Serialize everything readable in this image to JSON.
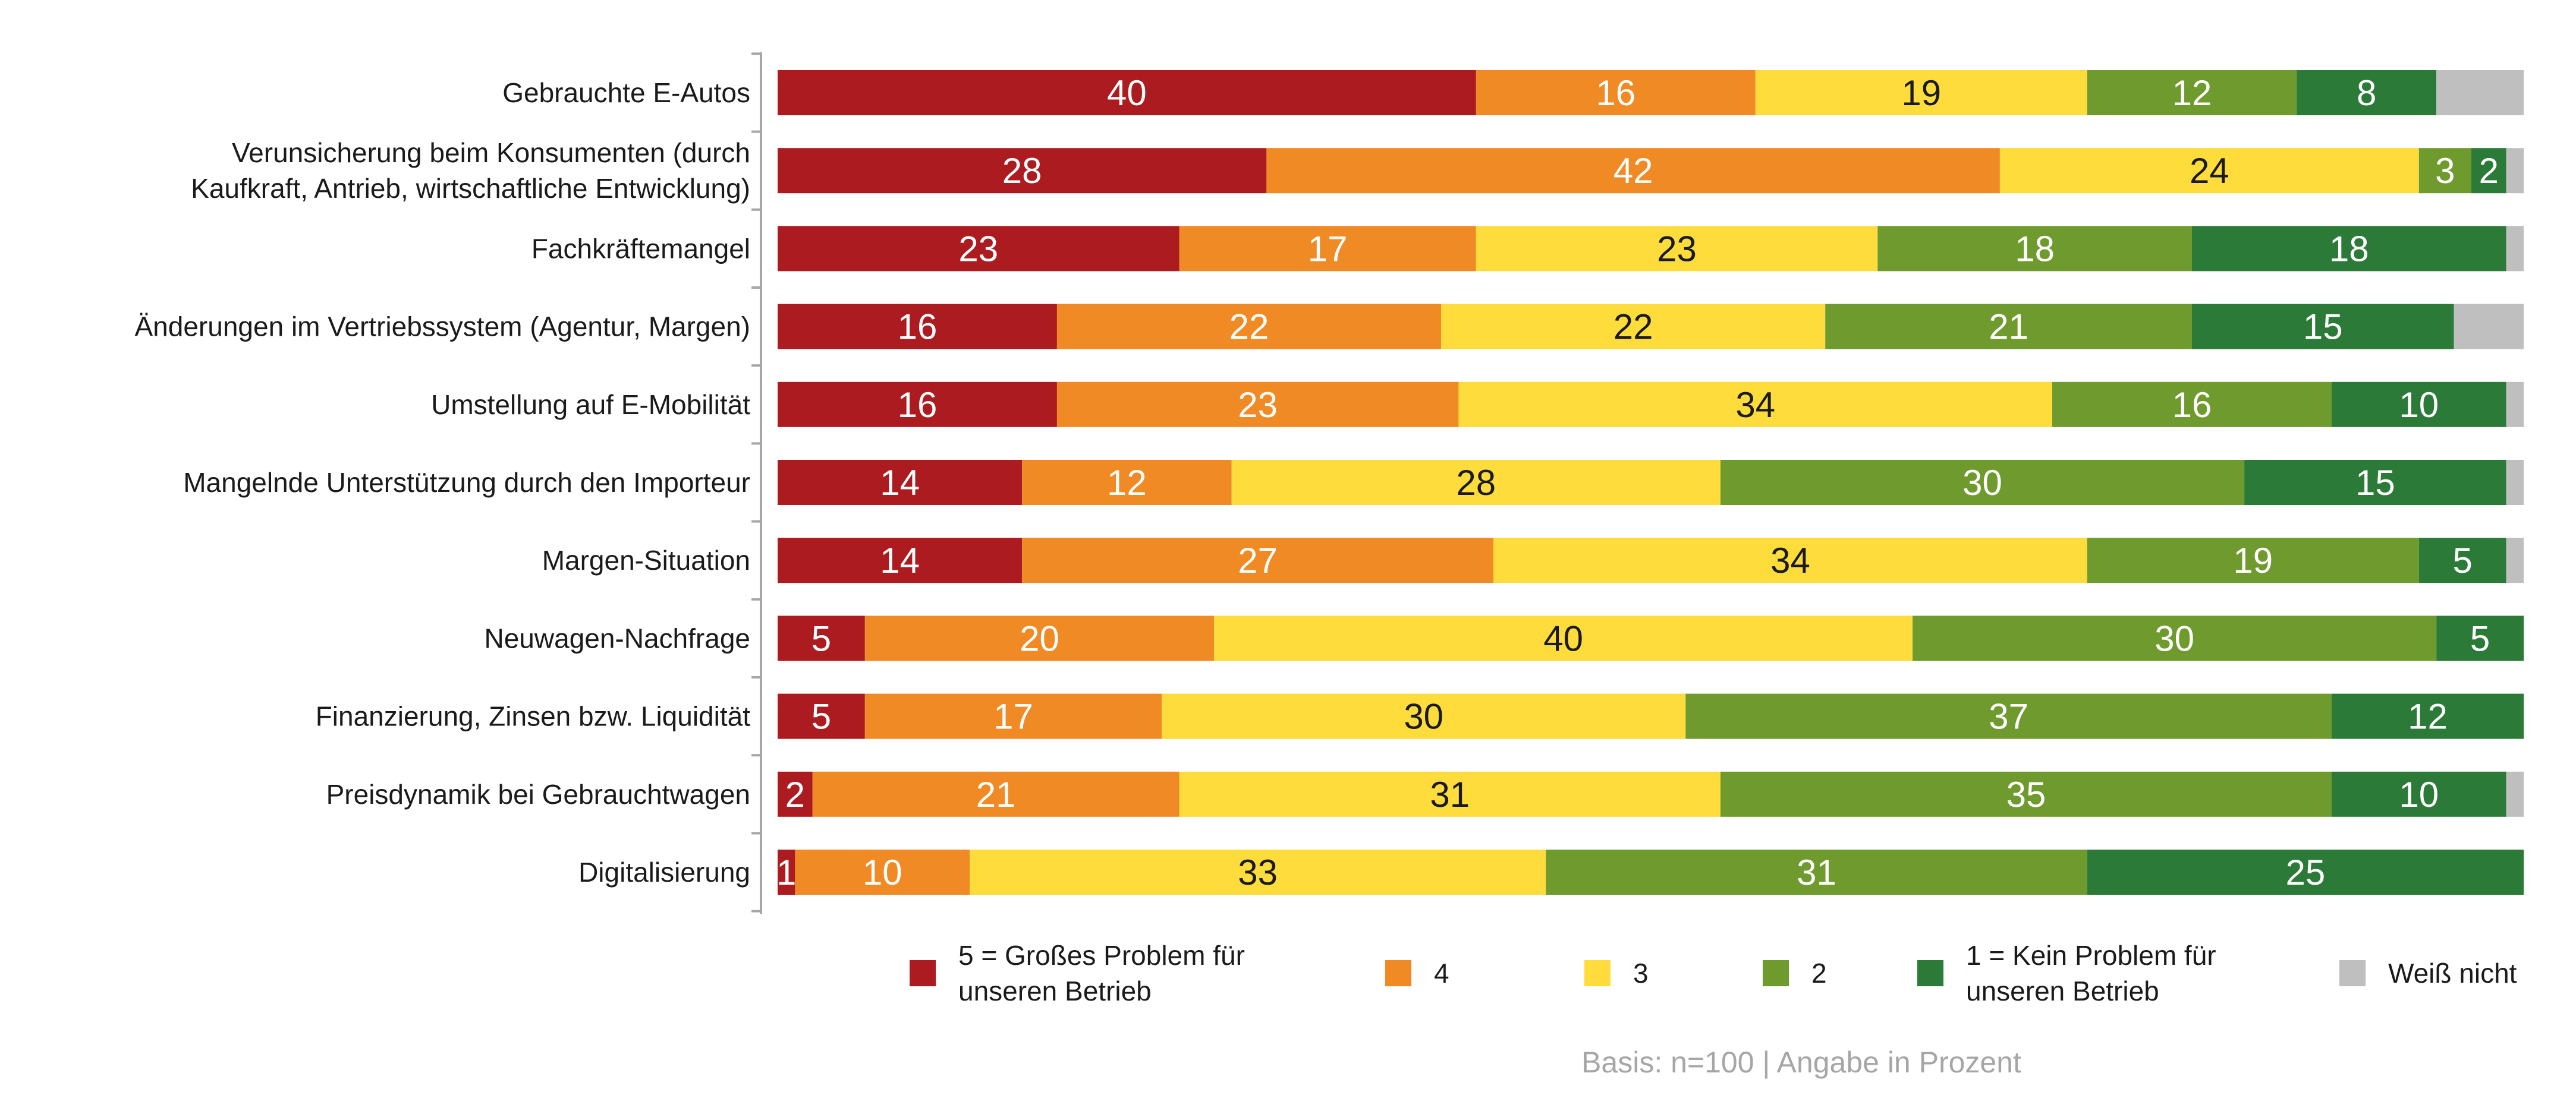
{
  "chart_data": {
    "type": "bar",
    "orientation": "horizontal",
    "stacked": true,
    "categories": [
      [
        "Gebrauchte E-Autos"
      ],
      [
        "Verunsicherung beim Konsumenten (durch",
        "Kaufkraft, Antrieb, wirtschaftliche Entwicklung)"
      ],
      [
        "Fachkräftemangel"
      ],
      [
        "Änderungen im Vertriebssystem (Agentur, Margen)"
      ],
      [
        "Umstellung auf E-Mobilität"
      ],
      [
        "Mangelnde Unterstützung durch den Importeur"
      ],
      [
        "Margen-Situation"
      ],
      [
        "Neuwagen-Nachfrage"
      ],
      [
        "Finanzierung, Zinsen bzw. Liquidität"
      ],
      [
        "Preisdynamik bei Gebrauchtwagen"
      ],
      [
        "Digitalisierung"
      ]
    ],
    "series": [
      {
        "name": [
          "5 = Großes Problem für",
          "unseren Betrieb"
        ],
        "color": "#ab1b1f",
        "label_color": "#ffffff",
        "values": [
          40,
          28,
          23,
          16,
          16,
          14,
          14,
          5,
          5,
          2,
          1
        ]
      },
      {
        "name": [
          "4"
        ],
        "color": "#f08a24",
        "label_color": "#ffffff",
        "values": [
          16,
          42,
          17,
          22,
          23,
          12,
          27,
          20,
          17,
          21,
          10
        ]
      },
      {
        "name": [
          "3"
        ],
        "color": "#fddc3b",
        "label_color": "#1a1a1a",
        "values": [
          19,
          24,
          23,
          22,
          34,
          28,
          34,
          40,
          30,
          31,
          33
        ]
      },
      {
        "name": [
          "2"
        ],
        "color": "#6f9a2d",
        "label_color": "#ffffff",
        "values": [
          12,
          3,
          18,
          21,
          16,
          30,
          19,
          30,
          37,
          35,
          31
        ]
      },
      {
        "name": [
          "1 = Kein Problem für",
          "unseren Betrieb"
        ],
        "color": "#2c7a37",
        "label_color": "#ffffff",
        "values": [
          8,
          2,
          18,
          15,
          10,
          15,
          5,
          5,
          12,
          10,
          25
        ]
      },
      {
        "name": [
          "Weiß nicht"
        ],
        "color": "#bfbfbf",
        "label_color": "#1a1a1a",
        "values": [
          5,
          1,
          2,
          4,
          1,
          1,
          1,
          0,
          0,
          1,
          0
        ]
      }
    ],
    "xlim": [
      0,
      100
    ],
    "grid": false,
    "legend_position": "bottom",
    "note": "Basis: n=100 | Angabe in Prozent"
  }
}
